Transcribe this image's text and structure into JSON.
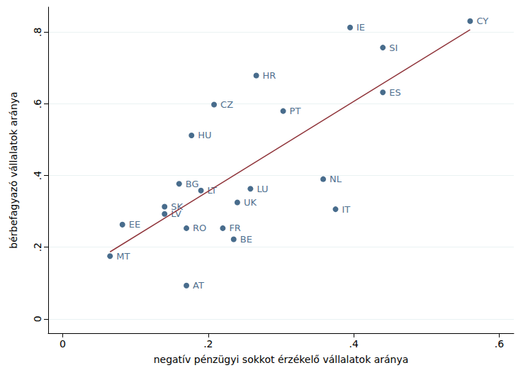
{
  "chart_data": {
    "type": "scatter",
    "x_label": "negatív pénzügyi sokkot érzékelő vállalatok aránya",
    "y_label": "bérbefagyazó vállalatok aránya",
    "xlim": [
      -0.02,
      0.62
    ],
    "ylim": [
      -0.04,
      0.87
    ],
    "xticks": [
      {
        "value": 0,
        "label": "0"
      },
      {
        "value": 0.2,
        "label": ".2"
      },
      {
        "value": 0.4,
        "label": ".4"
      },
      {
        "value": 0.6,
        "label": ".6"
      }
    ],
    "yticks": [
      {
        "value": 0,
        "label": "0"
      },
      {
        "value": 0.2,
        "label": ".2"
      },
      {
        "value": 0.4,
        "label": ".4"
      },
      {
        "value": 0.6,
        "label": ".6"
      },
      {
        "value": 0.8,
        "label": ".8"
      }
    ],
    "grid": true,
    "series": [
      {
        "type": "scatter",
        "color": "#1a476f",
        "marker": "circle",
        "labels": [
          "MT",
          "EE",
          "SK",
          "LV",
          "BG",
          "RO",
          "AT",
          "HU",
          "LT",
          "CZ",
          "FR",
          "BE",
          "UK",
          "LU",
          "HR",
          "PT",
          "NL",
          "IT",
          "IE",
          "SI",
          "ES",
          "CY"
        ],
        "x": [
          0.065,
          0.082,
          0.14,
          0.14,
          0.16,
          0.17,
          0.17,
          0.177,
          0.19,
          0.208,
          0.22,
          0.235,
          0.24,
          0.258,
          0.266,
          0.303,
          0.358,
          0.375,
          0.395,
          0.44,
          0.44,
          0.56
        ],
        "values": [
          0.175,
          0.263,
          0.313,
          0.293,
          0.377,
          0.253,
          0.093,
          0.512,
          0.358,
          0.598,
          0.253,
          0.222,
          0.325,
          0.363,
          0.679,
          0.58,
          0.39,
          0.306,
          0.813,
          0.757,
          0.632,
          0.831
        ]
      },
      {
        "type": "line",
        "color": "#90353b",
        "line_style": "solid",
        "x": [
          0.065,
          0.56
        ],
        "values": [
          0.187,
          0.807
        ]
      }
    ]
  }
}
